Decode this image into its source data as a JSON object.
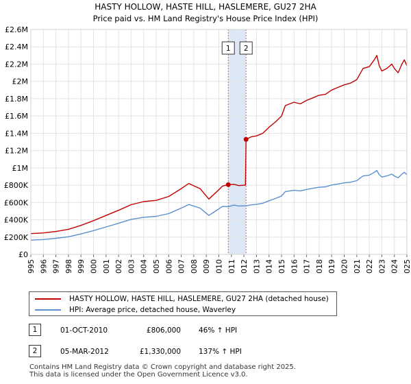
{
  "chart_data": {
    "type": "line",
    "title": "HASTY HOLLOW, HASTE HILL, HASLEMERE, GU27 2HA",
    "subtitle": "Price paid vs. HM Land Registry's House Price Index (HPI)",
    "xlim": [
      1995,
      2025
    ],
    "ylim": [
      0,
      2600000
    ],
    "x_ticks": [
      1995,
      1996,
      1997,
      1998,
      1999,
      2000,
      2001,
      2002,
      2003,
      2004,
      2005,
      2006,
      2007,
      2008,
      2009,
      2010,
      2011,
      2012,
      2013,
      2014,
      2015,
      2016,
      2017,
      2018,
      2019,
      2020,
      2021,
      2022,
      2023,
      2024,
      2025
    ],
    "y_ticks": [
      {
        "value": 0,
        "label": "£0"
      },
      {
        "value": 200000,
        "label": "£200K"
      },
      {
        "value": 400000,
        "label": "£400K"
      },
      {
        "value": 600000,
        "label": "£600K"
      },
      {
        "value": 800000,
        "label": "£800K"
      },
      {
        "value": 1000000,
        "label": "£1M"
      },
      {
        "value": 1200000,
        "label": "£1.2M"
      },
      {
        "value": 1400000,
        "label": "£1.4M"
      },
      {
        "value": 1600000,
        "label": "£1.6M"
      },
      {
        "value": 1800000,
        "label": "£1.8M"
      },
      {
        "value": 2000000,
        "label": "£2M"
      },
      {
        "value": 2200000,
        "label": "£2.2M"
      },
      {
        "value": 2400000,
        "label": "£2.4M"
      },
      {
        "value": 2600000,
        "label": "£2.6M"
      }
    ],
    "shaded_range": [
      2010.75,
      2012.17
    ],
    "series": [
      {
        "name": "HASTY HOLLOW, HASTE HILL, HASLEMERE, GU27 2HA (detached house)",
        "color": "#c00000",
        "points": [
          [
            1995.0,
            240000
          ],
          [
            1996.0,
            248000
          ],
          [
            1997.0,
            265000
          ],
          [
            1998.0,
            290000
          ],
          [
            1999.0,
            335000
          ],
          [
            2000.0,
            390000
          ],
          [
            2001.0,
            450000
          ],
          [
            2002.0,
            510000
          ],
          [
            2003.0,
            575000
          ],
          [
            2004.0,
            610000
          ],
          [
            2005.0,
            625000
          ],
          [
            2006.0,
            670000
          ],
          [
            2007.0,
            760000
          ],
          [
            2007.6,
            820000
          ],
          [
            2008.5,
            760000
          ],
          [
            2009.2,
            640000
          ],
          [
            2009.8,
            720000
          ],
          [
            2010.3,
            790000
          ],
          [
            2010.75,
            806000
          ],
          [
            2011.2,
            810000
          ],
          [
            2011.6,
            795000
          ],
          [
            2012.0,
            800000
          ],
          [
            2012.12,
            800000
          ],
          [
            2012.17,
            1330000
          ],
          [
            2012.6,
            1360000
          ],
          [
            2013.0,
            1370000
          ],
          [
            2013.5,
            1400000
          ],
          [
            2014.0,
            1470000
          ],
          [
            2014.5,
            1530000
          ],
          [
            2015.0,
            1600000
          ],
          [
            2015.3,
            1720000
          ],
          [
            2016.0,
            1760000
          ],
          [
            2016.5,
            1740000
          ],
          [
            2017.0,
            1780000
          ],
          [
            2017.5,
            1810000
          ],
          [
            2018.0,
            1840000
          ],
          [
            2018.5,
            1850000
          ],
          [
            2019.0,
            1900000
          ],
          [
            2019.5,
            1930000
          ],
          [
            2020.0,
            1960000
          ],
          [
            2020.5,
            1980000
          ],
          [
            2021.0,
            2020000
          ],
          [
            2021.5,
            2150000
          ],
          [
            2022.0,
            2170000
          ],
          [
            2022.4,
            2250000
          ],
          [
            2022.6,
            2300000
          ],
          [
            2022.8,
            2180000
          ],
          [
            2023.0,
            2120000
          ],
          [
            2023.4,
            2150000
          ],
          [
            2023.8,
            2200000
          ],
          [
            2024.0,
            2150000
          ],
          [
            2024.3,
            2100000
          ],
          [
            2024.6,
            2200000
          ],
          [
            2024.8,
            2250000
          ],
          [
            2025.0,
            2180000
          ]
        ]
      },
      {
        "name": "HPI: Average price, detached house, Waverley",
        "color": "#5b8fd0",
        "points": [
          [
            1995.0,
            165000
          ],
          [
            1996.0,
            172000
          ],
          [
            1997.0,
            186000
          ],
          [
            1998.0,
            204000
          ],
          [
            1999.0,
            236000
          ],
          [
            2000.0,
            275000
          ],
          [
            2001.0,
            317000
          ],
          [
            2002.0,
            360000
          ],
          [
            2003.0,
            405000
          ],
          [
            2004.0,
            429000
          ],
          [
            2005.0,
            440000
          ],
          [
            2006.0,
            472000
          ],
          [
            2007.0,
            535000
          ],
          [
            2007.6,
            577000
          ],
          [
            2008.5,
            535000
          ],
          [
            2009.2,
            450000
          ],
          [
            2009.8,
            507000
          ],
          [
            2010.3,
            556000
          ],
          [
            2010.75,
            552000
          ],
          [
            2011.2,
            570000
          ],
          [
            2011.6,
            560000
          ],
          [
            2012.0,
            561000
          ],
          [
            2012.17,
            561000
          ],
          [
            2012.6,
            573000
          ],
          [
            2013.0,
            578000
          ],
          [
            2013.5,
            591000
          ],
          [
            2014.0,
            620000
          ],
          [
            2014.5,
            646000
          ],
          [
            2015.0,
            675000
          ],
          [
            2015.3,
            726000
          ],
          [
            2016.0,
            742000
          ],
          [
            2016.5,
            734000
          ],
          [
            2017.0,
            751000
          ],
          [
            2017.5,
            764000
          ],
          [
            2018.0,
            776000
          ],
          [
            2018.5,
            781000
          ],
          [
            2019.0,
            802000
          ],
          [
            2019.5,
            814000
          ],
          [
            2020.0,
            827000
          ],
          [
            2020.5,
            835000
          ],
          [
            2021.0,
            852000
          ],
          [
            2021.5,
            907000
          ],
          [
            2022.0,
            916000
          ],
          [
            2022.4,
            949000
          ],
          [
            2022.6,
            970000
          ],
          [
            2022.8,
            920000
          ],
          [
            2023.0,
            895000
          ],
          [
            2023.4,
            907000
          ],
          [
            2023.8,
            928000
          ],
          [
            2024.0,
            907000
          ],
          [
            2024.3,
            886000
          ],
          [
            2024.6,
            928000
          ],
          [
            2024.8,
            949000
          ],
          [
            2025.0,
            920000
          ]
        ]
      }
    ],
    "markers": [
      {
        "label": "1",
        "x": 2010.75,
        "y": 806000
      },
      {
        "label": "2",
        "x": 2012.17,
        "y": 1330000
      }
    ]
  },
  "legend": [
    {
      "label": "HASTY HOLLOW, HASTE HILL, HASLEMERE, GU27 2HA (detached house)",
      "color": "#c00000"
    },
    {
      "label": "HPI: Average price, detached house, Waverley",
      "color": "#5b8fd0"
    }
  ],
  "transactions": [
    {
      "badge": "1",
      "date": "01-OCT-2010",
      "price": "£806,000",
      "hpi": "46% ↑ HPI"
    },
    {
      "badge": "2",
      "date": "05-MAR-2012",
      "price": "£1,330,000",
      "hpi": "137% ↑ HPI"
    }
  ],
  "footer": {
    "line1": "Contains HM Land Registry data © Crown copyright and database right 2025.",
    "line2": "This data is licensed under the Open Government Licence v3.0."
  }
}
